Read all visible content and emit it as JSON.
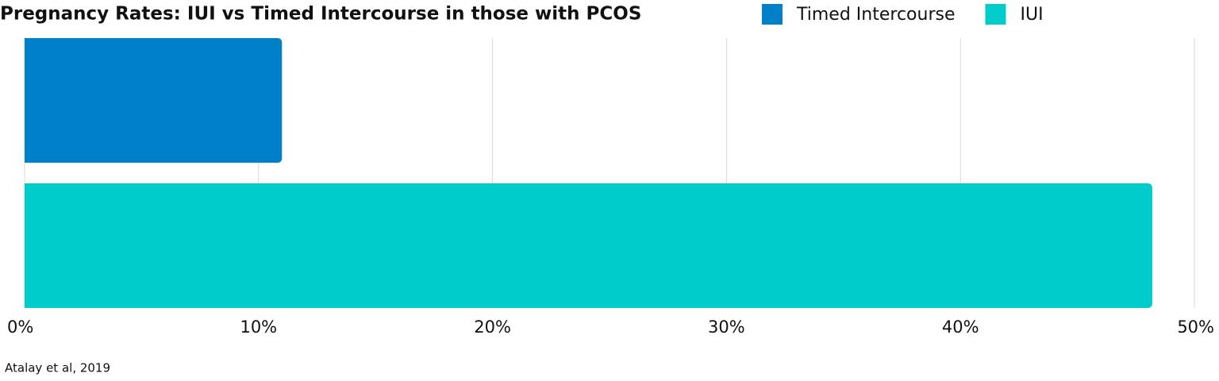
{
  "chart_data": {
    "type": "bar",
    "orientation": "horizontal",
    "title": "Pregnancy Rates: IUI vs Timed Intercourse in those with PCOS",
    "source": "Atalay et al, 2019",
    "categories": [
      null
    ],
    "series": [
      {
        "name": "Timed Intercourse",
        "color": "#0080c8",
        "values": [
          11
        ]
      },
      {
        "name": "IUI",
        "color": "#00cccc",
        "values": [
          48.2
        ]
      }
    ],
    "xlim": [
      0,
      50
    ],
    "xticks": [
      {
        "value": 0,
        "label": "0%"
      },
      {
        "value": 10,
        "label": "10%"
      },
      {
        "value": 20,
        "label": "20%"
      },
      {
        "value": 30,
        "label": "30%"
      },
      {
        "value": 40,
        "label": "40%"
      },
      {
        "value": 50,
        "label": "50%"
      }
    ],
    "grid": true,
    "legend": "top"
  }
}
